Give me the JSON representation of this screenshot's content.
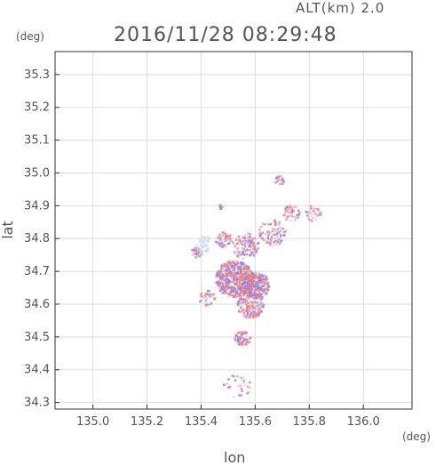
{
  "header": {
    "altitude_label": "ALT(km) 2.0",
    "timestamp": "2016/11/28 08:29:48"
  },
  "axes": {
    "x_label": "lon",
    "y_label": "lat",
    "x_unit": "(deg)",
    "y_unit": "(deg)",
    "x_range": [
      134.86,
      136.18
    ],
    "y_range": [
      34.28,
      35.37
    ],
    "x_ticks": [
      "135.0",
      "135.2",
      "135.4",
      "135.6",
      "135.8",
      "136.0"
    ],
    "y_ticks": [
      "34.3",
      "34.4",
      "34.5",
      "34.6",
      "34.7",
      "34.8",
      "34.9",
      "35.0",
      "35.1",
      "35.2",
      "35.3"
    ],
    "grid": true
  },
  "colors": {
    "positive": "#f08080",
    "negative": "#7f7ff5",
    "frame": "#333333",
    "grid": "#dddddd"
  }
}
